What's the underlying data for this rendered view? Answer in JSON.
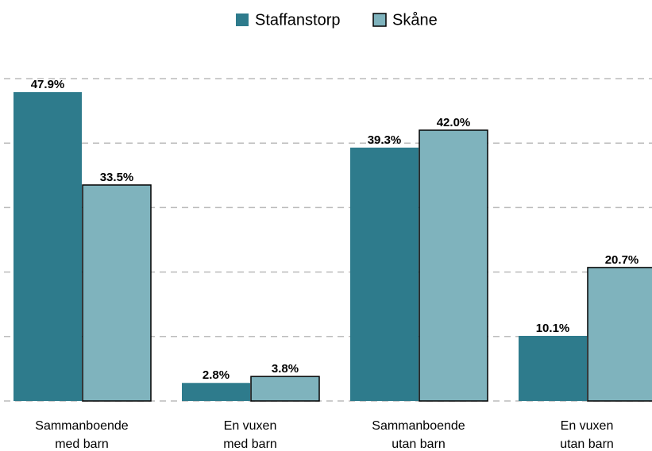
{
  "chart_data": {
    "type": "bar",
    "categories": [
      [
        "Sammanboende",
        "med barn"
      ],
      [
        "En vuxen",
        "med barn"
      ],
      [
        "Sammanboende",
        "utan barn"
      ],
      [
        "En vuxen",
        "utan barn"
      ]
    ],
    "series": [
      {
        "name": "Staffanstorp",
        "color": "#2e7b8c",
        "values": [
          47.9,
          2.8,
          39.3,
          10.1
        ],
        "value_labels": [
          "47.9%",
          "2.8%",
          "39.3%",
          "10.1%"
        ]
      },
      {
        "name": "Skåne",
        "color": "#7fb3bd",
        "edgecolor": "#000000",
        "values": [
          33.5,
          3.8,
          42.0,
          20.7
        ],
        "value_labels": [
          "33.5%",
          "3.8%",
          "42.0%",
          "20.7%"
        ]
      }
    ],
    "ylim": [
      0,
      50
    ],
    "yticks": [
      0,
      10,
      20,
      30,
      40,
      50
    ],
    "grid": true,
    "legend": "top"
  }
}
